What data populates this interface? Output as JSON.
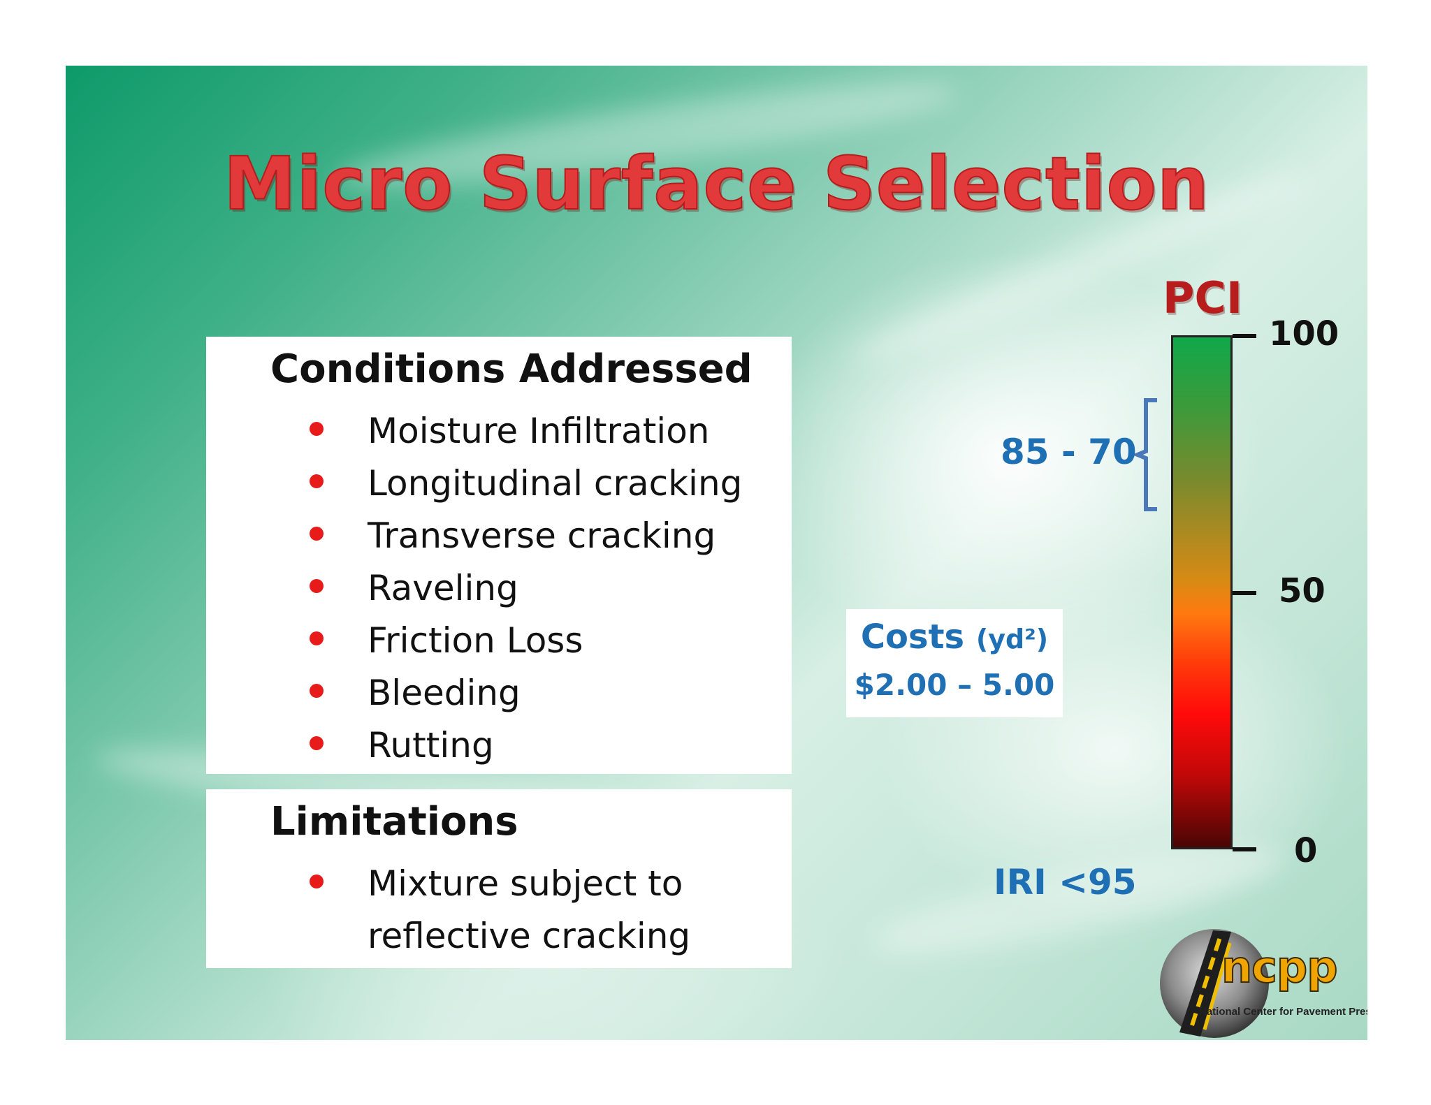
{
  "slide": {
    "title": "Micro Surface Selection"
  },
  "conditions": {
    "heading": "Conditions Addressed",
    "items": [
      "Moisture Infiltration",
      "Longitudinal cracking",
      "Transverse cracking",
      "Raveling",
      "Friction Loss",
      "Bleeding",
      "Rutting"
    ]
  },
  "limitations": {
    "heading": "Limitations",
    "items": [
      "Mixture subject to reflective cracking"
    ]
  },
  "costs": {
    "label": "Costs",
    "unit": "(yd²)",
    "value": "$2.00 – 5.00"
  },
  "pci": {
    "title": "PCI",
    "range_label": "85 - 70",
    "range": [
      70,
      85
    ],
    "scale": [
      0,
      100
    ],
    "ticks": [
      "100",
      "50",
      "0"
    ]
  },
  "iri": {
    "label": "IRI <95"
  },
  "logo": {
    "wordmark": "ncpp",
    "tagline": "National Center for Pavement Preservation"
  },
  "colors": {
    "title_red": "#e23a3a",
    "accent_blue": "#1f6fb5",
    "bullet_red": "#e81b1b",
    "pci_red": "#b81d1d"
  }
}
